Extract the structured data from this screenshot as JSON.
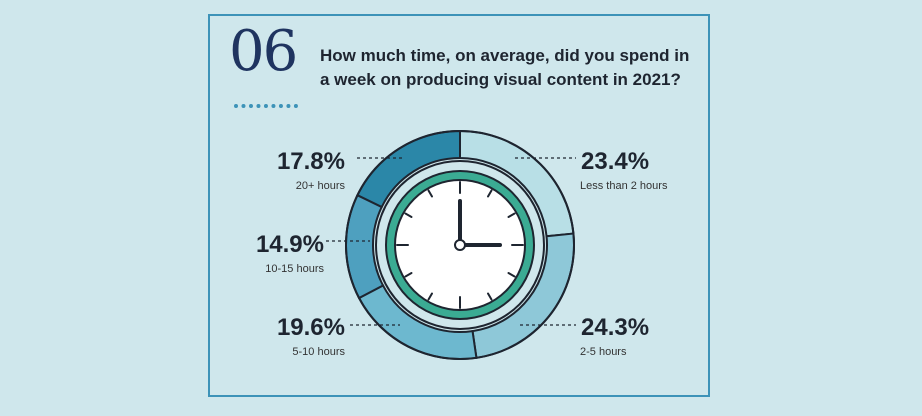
{
  "number": "06",
  "question": "How much time, on average, did you spend in a week on producing visual content in 2021?",
  "colors": {
    "background": "#cfe7ec",
    "border": "#3d93b8",
    "ring_inner": "#3bab93",
    "navy": "#1f3460"
  },
  "chart_data": {
    "type": "pie",
    "style": "donut-clock",
    "slices": [
      {
        "label": "Less than 2 hours",
        "value": 23.4,
        "display": "23.4%",
        "color": "#b8dfe6"
      },
      {
        "label": "2-5 hours",
        "value": 24.3,
        "display": "24.3%",
        "color": "#8ec8d8"
      },
      {
        "label": "5-10 hours",
        "value": 19.6,
        "display": "19.6%",
        "color": "#6db8cf"
      },
      {
        "label": "10-15 hours",
        "value": 14.9,
        "display": "14.9%",
        "color": "#4ea0bf"
      },
      {
        "label": "20+ hours",
        "value": 17.8,
        "display": "17.8%",
        "color": "#2b87a8"
      }
    ]
  }
}
